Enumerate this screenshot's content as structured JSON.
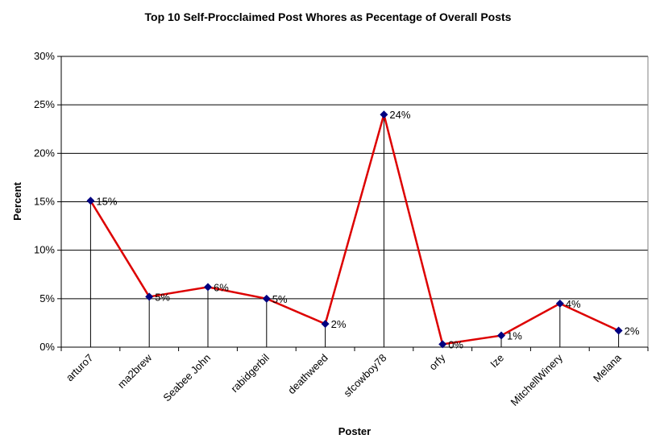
{
  "chart_data": {
    "type": "line",
    "title": "Top 10 Self-Procclaimed Post Whores as  Pecentage of Overall Posts",
    "xlabel": "Poster",
    "ylabel": "Percent",
    "ylim": [
      0,
      30
    ],
    "yticks": [
      0,
      5,
      10,
      15,
      20,
      25,
      30
    ],
    "ytick_labels": [
      "0%",
      "5%",
      "10%",
      "15%",
      "20%",
      "25%",
      "30%"
    ],
    "grid": true,
    "categories": [
      "arturo7",
      "ma2brew",
      "Seabee John",
      "rabidgerbil",
      "deathweed",
      "sfcowboy78",
      "orfy",
      "Ize",
      "MitchellWinery",
      "Melana"
    ],
    "series": [
      {
        "values": [
          15.1,
          5.2,
          6.2,
          5.0,
          2.4,
          24.0,
          0.3,
          1.2,
          4.5,
          1.7
        ],
        "data_labels": [
          "15%",
          "5%",
          "6%",
          "5%",
          "2%",
          "24%",
          "0%",
          "1%",
          "4%",
          "2%"
        ],
        "line_color": "#dd0000",
        "marker_color": "#000080"
      }
    ],
    "drop_lines": true
  }
}
